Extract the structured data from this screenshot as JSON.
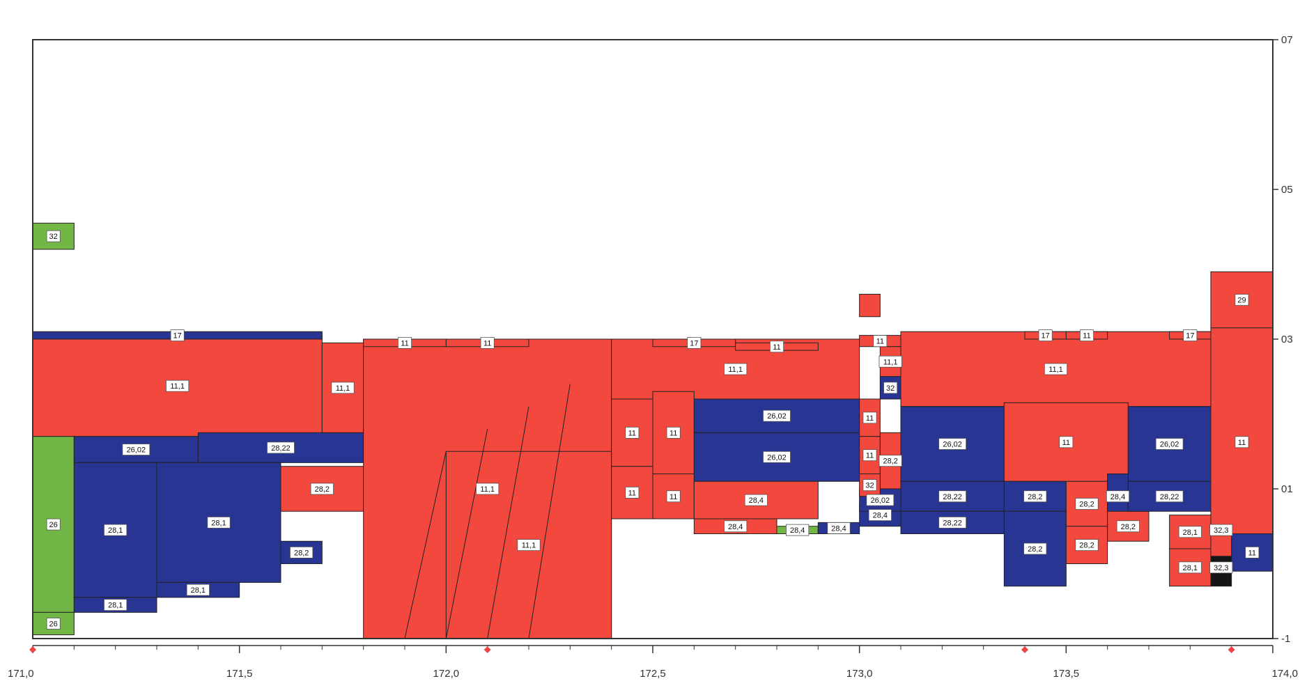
{
  "chart_data": {
    "type": "area",
    "title": "",
    "xlabel": "",
    "ylabel": "",
    "xlim": [
      171.0,
      174.0
    ],
    "ylim": [
      -1,
      7
    ],
    "x_ticks": [
      "171,0",
      "171,5",
      "172,0",
      "172,5",
      "173,0",
      "173,5",
      "174,0"
    ],
    "x_tick_values": [
      171.0,
      171.5,
      172.0,
      172.5,
      173.0,
      173.5,
      174.0
    ],
    "y_ticks": [
      "-1",
      "01",
      "03",
      "05",
      "07"
    ],
    "y_tick_values": [
      -1,
      1,
      3,
      5,
      7
    ],
    "markers_x": [
      171.0,
      172.1,
      173.4,
      173.9
    ],
    "colors": {
      "red": "#f2483e",
      "blue": "#283593",
      "green": "#72b645",
      "black": "#151515",
      "marker": "#ee4444",
      "frame": "#333333"
    },
    "blocks": [
      {
        "x0": 171.0,
        "x1": 171.1,
        "y0": 4.2,
        "y1": 4.55,
        "color": "green",
        "label": "32"
      },
      {
        "x0": 171.0,
        "x1": 171.7,
        "y0": 1.7,
        "y1": 3.05,
        "color": "red",
        "label": "11,1"
      },
      {
        "x0": 171.0,
        "x1": 171.7,
        "y0": 3.0,
        "y1": 3.1,
        "color": "blue",
        "label": "17"
      },
      {
        "x0": 171.0,
        "x1": 171.1,
        "y0": -0.65,
        "y1": 1.7,
        "color": "green",
        "label": "26"
      },
      {
        "x0": 171.0,
        "x1": 171.1,
        "y0": -0.95,
        "y1": -0.65,
        "color": "green",
        "label": "26"
      },
      {
        "x0": 171.1,
        "x1": 171.4,
        "y0": 1.35,
        "y1": 1.7,
        "color": "blue",
        "label": "26,02"
      },
      {
        "x0": 171.4,
        "x1": 171.8,
        "y0": 1.35,
        "y1": 1.75,
        "color": "blue",
        "label": "28,22"
      },
      {
        "x0": 171.1,
        "x1": 171.3,
        "y0": -0.45,
        "y1": 1.35,
        "color": "blue",
        "label": "28,1"
      },
      {
        "x0": 171.3,
        "x1": 171.6,
        "y0": -0.25,
        "y1": 1.35,
        "color": "blue",
        "label": "28,1"
      },
      {
        "x0": 171.1,
        "x1": 171.3,
        "y0": -0.65,
        "y1": -0.45,
        "color": "blue",
        "label": "28,1"
      },
      {
        "x0": 171.3,
        "x1": 171.5,
        "y0": -0.45,
        "y1": -0.25,
        "color": "blue",
        "label": "28,1"
      },
      {
        "x0": 171.6,
        "x1": 171.8,
        "y0": 0.7,
        "y1": 1.3,
        "color": "red",
        "label": "28,2"
      },
      {
        "x0": 171.6,
        "x1": 171.7,
        "y0": 0.0,
        "y1": 0.3,
        "color": "blue",
        "label": "28,2"
      },
      {
        "x0": 171.7,
        "x1": 171.8,
        "y0": 1.75,
        "y1": 2.95,
        "color": "red",
        "label": "11,1"
      },
      {
        "x0": 171.8,
        "x1": 172.4,
        "y0": -1.0,
        "y1": 3.0,
        "color": "red",
        "label": "11,1"
      },
      {
        "x0": 171.8,
        "x1": 172.0,
        "y0": 2.9,
        "y1": 3.0,
        "color": "red",
        "label": "11"
      },
      {
        "x0": 172.0,
        "x1": 172.2,
        "y0": 2.9,
        "y1": 3.0,
        "color": "red",
        "label": "11"
      },
      {
        "x0": 172.0,
        "x1": 172.4,
        "y0": -1.0,
        "y1": 1.5,
        "color": "red",
        "label": "11,1"
      },
      {
        "x0": 172.4,
        "x1": 173.0,
        "y0": 2.2,
        "y1": 3.0,
        "color": "red",
        "label": "11,1"
      },
      {
        "x0": 172.5,
        "x1": 172.7,
        "y0": 2.9,
        "y1": 3.0,
        "color": "red",
        "label": "17"
      },
      {
        "x0": 172.7,
        "x1": 172.9,
        "y0": 2.85,
        "y1": 2.95,
        "color": "red",
        "label": "11"
      },
      {
        "x0": 172.4,
        "x1": 172.5,
        "y0": 1.3,
        "y1": 2.2,
        "color": "red",
        "label": "11"
      },
      {
        "x0": 172.5,
        "x1": 172.6,
        "y0": 1.2,
        "y1": 2.3,
        "color": "red",
        "label": "11"
      },
      {
        "x0": 172.4,
        "x1": 172.5,
        "y0": 0.6,
        "y1": 1.3,
        "color": "red",
        "label": "11"
      },
      {
        "x0": 172.5,
        "x1": 172.6,
        "y0": 0.6,
        "y1": 1.2,
        "color": "red",
        "label": "11"
      },
      {
        "x0": 172.6,
        "x1": 173.0,
        "y0": 1.75,
        "y1": 2.2,
        "color": "blue",
        "label": "26,02"
      },
      {
        "x0": 172.6,
        "x1": 173.0,
        "y0": 1.1,
        "y1": 1.75,
        "color": "blue",
        "label": "26,02"
      },
      {
        "x0": 172.6,
        "x1": 172.9,
        "y0": 0.6,
        "y1": 1.1,
        "color": "red",
        "label": "28,4"
      },
      {
        "x0": 172.6,
        "x1": 172.8,
        "y0": 0.4,
        "y1": 0.6,
        "color": "red",
        "label": "28,4"
      },
      {
        "x0": 172.8,
        "x1": 172.9,
        "y0": 0.4,
        "y1": 0.5,
        "color": "green",
        "label": "28,4"
      },
      {
        "x0": 172.9,
        "x1": 173.0,
        "y0": 0.4,
        "y1": 0.55,
        "color": "blue",
        "label": "28,4"
      },
      {
        "x0": 173.0,
        "x1": 173.1,
        "y0": 0.5,
        "y1": 0.8,
        "color": "blue",
        "label": "28,4"
      },
      {
        "x0": 173.0,
        "x1": 173.1,
        "y0": 0.7,
        "y1": 1.0,
        "color": "blue",
        "label": "26,02"
      },
      {
        "x0": 173.0,
        "x1": 173.05,
        "y0": 3.3,
        "y1": 3.6,
        "color": "red",
        "label": ""
      },
      {
        "x0": 173.0,
        "x1": 173.1,
        "y0": 2.9,
        "y1": 3.05,
        "color": "red",
        "label": "11"
      },
      {
        "x0": 173.05,
        "x1": 173.1,
        "y0": 2.5,
        "y1": 2.9,
        "color": "red",
        "label": "11,1"
      },
      {
        "x0": 173.05,
        "x1": 173.1,
        "y0": 2.2,
        "y1": 2.5,
        "color": "blue",
        "label": "32"
      },
      {
        "x0": 173.0,
        "x1": 173.05,
        "y0": 1.7,
        "y1": 2.2,
        "color": "red",
        "label": "11"
      },
      {
        "x0": 173.0,
        "x1": 173.05,
        "y0": 1.2,
        "y1": 1.7,
        "color": "red",
        "label": "11"
      },
      {
        "x0": 173.05,
        "x1": 173.1,
        "y0": 1.0,
        "y1": 1.75,
        "color": "red",
        "label": "28,2"
      },
      {
        "x0": 173.0,
        "x1": 173.05,
        "y0": 0.9,
        "y1": 1.2,
        "color": "red",
        "label": "32"
      },
      {
        "x0": 173.1,
        "x1": 173.85,
        "y0": 2.1,
        "y1": 3.1,
        "color": "red",
        "label": "11,1"
      },
      {
        "x0": 173.4,
        "x1": 173.5,
        "y0": 3.0,
        "y1": 3.1,
        "color": "red",
        "label": "17"
      },
      {
        "x0": 173.5,
        "x1": 173.6,
        "y0": 3.0,
        "y1": 3.1,
        "color": "red",
        "label": "11"
      },
      {
        "x0": 173.75,
        "x1": 173.85,
        "y0": 3.0,
        "y1": 3.1,
        "color": "red",
        "label": "17"
      },
      {
        "x0": 173.1,
        "x1": 173.35,
        "y0": 1.1,
        "y1": 2.1,
        "color": "blue",
        "label": "26,02"
      },
      {
        "x0": 173.35,
        "x1": 173.65,
        "y0": 1.1,
        "y1": 2.15,
        "color": "red",
        "label": "11"
      },
      {
        "x0": 173.65,
        "x1": 173.85,
        "y0": 1.1,
        "y1": 2.1,
        "color": "blue",
        "label": "26,02"
      },
      {
        "x0": 173.1,
        "x1": 173.35,
        "y0": 0.7,
        "y1": 1.1,
        "color": "blue",
        "label": "28,22"
      },
      {
        "x0": 173.1,
        "x1": 173.35,
        "y0": 0.4,
        "y1": 0.7,
        "color": "blue",
        "label": "28,22"
      },
      {
        "x0": 173.35,
        "x1": 173.5,
        "y0": 0.7,
        "y1": 1.1,
        "color": "blue",
        "label": "28,2"
      },
      {
        "x0": 173.35,
        "x1": 173.5,
        "y0": -0.3,
        "y1": 0.7,
        "color": "blue",
        "label": "28,2"
      },
      {
        "x0": 173.5,
        "x1": 173.6,
        "y0": 0.5,
        "y1": 1.1,
        "color": "red",
        "label": "28,2"
      },
      {
        "x0": 173.6,
        "x1": 173.65,
        "y0": 0.6,
        "y1": 1.2,
        "color": "blue",
        "label": "28,4"
      },
      {
        "x0": 173.5,
        "x1": 173.6,
        "y0": 0.0,
        "y1": 0.5,
        "color": "red",
        "label": "28,2"
      },
      {
        "x0": 173.6,
        "x1": 173.7,
        "y0": 0.3,
        "y1": 0.7,
        "color": "red",
        "label": "28,2"
      },
      {
        "x0": 173.65,
        "x1": 173.85,
        "y0": 0.7,
        "y1": 1.1,
        "color": "blue",
        "label": "28,22"
      },
      {
        "x0": 173.75,
        "x1": 173.85,
        "y0": 0.2,
        "y1": 0.65,
        "color": "red",
        "label": "28,1"
      },
      {
        "x0": 173.75,
        "x1": 173.85,
        "y0": -0.3,
        "y1": 0.2,
        "color": "red",
        "label": "28,1"
      },
      {
        "x0": 173.85,
        "x1": 173.9,
        "y0": 0.2,
        "y1": 0.7,
        "color": "black",
        "label": "32,3"
      },
      {
        "x0": 173.85,
        "x1": 173.9,
        "y0": -0.3,
        "y1": 0.2,
        "color": "black",
        "label": "32,3"
      },
      {
        "x0": 173.85,
        "x1": 174.0,
        "y0": 3.15,
        "y1": 3.9,
        "color": "red",
        "label": "29"
      },
      {
        "x0": 173.85,
        "x1": 174.0,
        "y0": 0.1,
        "y1": 3.15,
        "color": "red",
        "label": "11"
      },
      {
        "x0": 173.9,
        "x1": 174.0,
        "y0": -0.1,
        "y1": 0.4,
        "color": "blue",
        "label": "11"
      }
    ]
  }
}
